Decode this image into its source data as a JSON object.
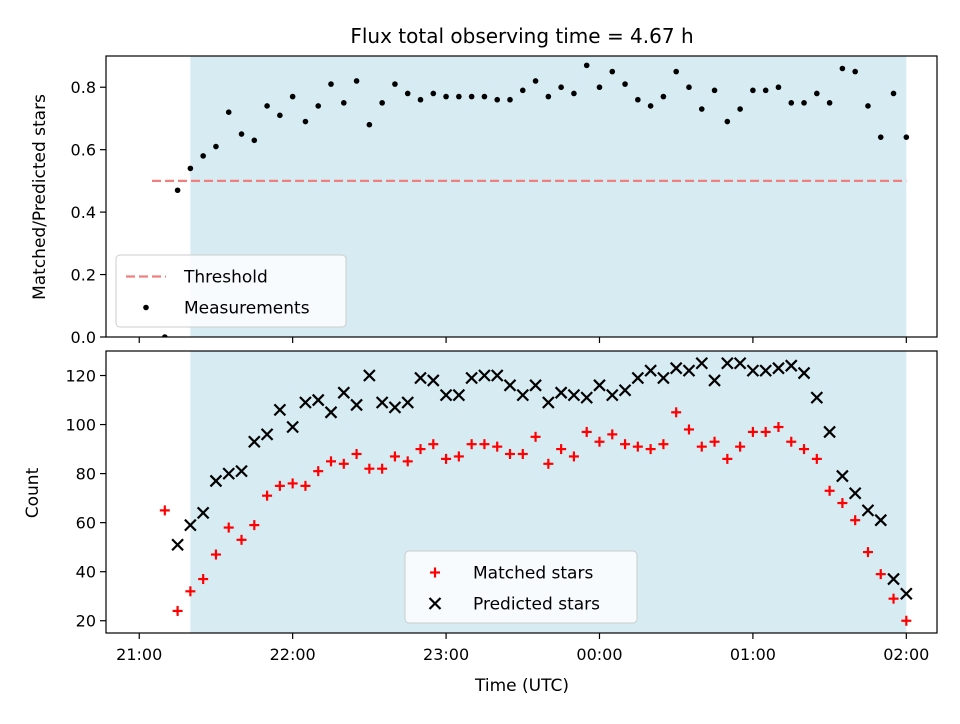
{
  "chart_data": [
    {
      "type": "scatter",
      "title": "Flux total observing time = 4.67 h",
      "xlabel": "",
      "ylabel": "Matched/Predicted stars",
      "xlim": [
        "21:00",
        "02:00"
      ],
      "xticks": [
        "21:00",
        "22:00",
        "23:00",
        "00:00",
        "01:00",
        "02:00"
      ],
      "show_xtick_labels": false,
      "ylim": [
        0,
        0.9
      ],
      "yticks": [
        0.0,
        0.2,
        0.4,
        0.6,
        0.8
      ],
      "ytick_labels": [
        "0.0",
        "0.2",
        "0.4",
        "0.6",
        "0.8"
      ],
      "shaded_span": [
        "21:20",
        "02:00"
      ],
      "shade_color": "#add8e6",
      "grid": false,
      "legend": "lower-left",
      "threshold": {
        "name": "Threshold",
        "y": 0.5,
        "x_range": [
          "21:05",
          "02:00"
        ],
        "color": "#f08080"
      },
      "series": [
        {
          "name": "Measurements",
          "marker": "dot",
          "color": "#000000",
          "x": [
            "21:10",
            "21:15",
            "21:20",
            "21:25",
            "21:30",
            "21:35",
            "21:40",
            "21:45",
            "21:50",
            "21:55",
            "22:00",
            "22:05",
            "22:10",
            "22:15",
            "22:20",
            "22:25",
            "22:30",
            "22:35",
            "22:40",
            "22:45",
            "22:50",
            "22:55",
            "23:00",
            "23:05",
            "23:10",
            "23:15",
            "23:20",
            "23:25",
            "23:30",
            "23:35",
            "23:40",
            "23:45",
            "23:50",
            "23:55",
            "00:00",
            "00:05",
            "00:10",
            "00:15",
            "00:20",
            "00:25",
            "00:30",
            "00:35",
            "00:40",
            "00:45",
            "00:50",
            "00:55",
            "01:00",
            "01:05",
            "01:10",
            "01:15",
            "01:20",
            "01:25",
            "01:30",
            "01:35",
            "01:40",
            "01:45",
            "01:50",
            "01:55",
            "02:00"
          ],
          "y": [
            0.0,
            0.47,
            0.54,
            0.58,
            0.61,
            0.72,
            0.65,
            0.63,
            0.74,
            0.71,
            0.77,
            0.69,
            0.74,
            0.81,
            0.75,
            0.82,
            0.68,
            0.75,
            0.81,
            0.78,
            0.76,
            0.78,
            0.77,
            0.77,
            0.77,
            0.77,
            0.76,
            0.76,
            0.79,
            0.82,
            0.77,
            0.8,
            0.78,
            0.87,
            0.8,
            0.85,
            0.81,
            0.76,
            0.74,
            0.77,
            0.85,
            0.8,
            0.73,
            0.79,
            0.69,
            0.73,
            0.79,
            0.79,
            0.8,
            0.75,
            0.75,
            0.78,
            0.75,
            0.86,
            0.85,
            0.74,
            0.64,
            0.78,
            0.64
          ]
        }
      ]
    },
    {
      "type": "scatter",
      "title": "",
      "xlabel": "Time (UTC)",
      "ylabel": "Count",
      "xlim": [
        "21:00",
        "02:00"
      ],
      "xticks": [
        "21:00",
        "22:00",
        "23:00",
        "00:00",
        "01:00",
        "02:00"
      ],
      "show_xtick_labels": true,
      "ylim": [
        15,
        130
      ],
      "yticks": [
        20,
        40,
        60,
        80,
        100,
        120
      ],
      "ytick_labels": [
        "20",
        "40",
        "60",
        "80",
        "100",
        "120"
      ],
      "shaded_span": [
        "21:20",
        "02:00"
      ],
      "shade_color": "#add8e6",
      "grid": false,
      "legend": "lower-center",
      "series": [
        {
          "name": "Matched stars",
          "marker": "plus",
          "color": "#ff0000",
          "x": [
            "21:10",
            "21:15",
            "21:20",
            "21:25",
            "21:30",
            "21:35",
            "21:40",
            "21:45",
            "21:50",
            "21:55",
            "22:00",
            "22:05",
            "22:10",
            "22:15",
            "22:20",
            "22:25",
            "22:30",
            "22:35",
            "22:40",
            "22:45",
            "22:50",
            "22:55",
            "23:00",
            "23:05",
            "23:10",
            "23:15",
            "23:20",
            "23:25",
            "23:30",
            "23:35",
            "23:40",
            "23:45",
            "23:50",
            "23:55",
            "00:00",
            "00:05",
            "00:10",
            "00:15",
            "00:20",
            "00:25",
            "00:30",
            "00:35",
            "00:40",
            "00:45",
            "00:50",
            "00:55",
            "01:00",
            "01:05",
            "01:10",
            "01:15",
            "01:20",
            "01:25",
            "01:30",
            "01:35",
            "01:40",
            "01:45",
            "01:50",
            "01:55",
            "02:00"
          ],
          "y": [
            65,
            24,
            32,
            37,
            47,
            58,
            53,
            59,
            71,
            75,
            76,
            75,
            81,
            85,
            84,
            88,
            82,
            82,
            87,
            85,
            90,
            92,
            86,
            87,
            92,
            92,
            91,
            88,
            88,
            95,
            84,
            90,
            87,
            97,
            93,
            96,
            92,
            91,
            90,
            92,
            105,
            98,
            91,
            93,
            86,
            91,
            97,
            97,
            99,
            93,
            90,
            86,
            73,
            68,
            61,
            48,
            39,
            29,
            20
          ]
        },
        {
          "name": "Predicted stars",
          "marker": "x",
          "color": "#000000",
          "x": [
            "21:15",
            "21:20",
            "21:25",
            "21:30",
            "21:35",
            "21:40",
            "21:45",
            "21:50",
            "21:55",
            "22:00",
            "22:05",
            "22:10",
            "22:15",
            "22:20",
            "22:25",
            "22:30",
            "22:35",
            "22:40",
            "22:45",
            "22:50",
            "22:55",
            "23:00",
            "23:05",
            "23:10",
            "23:15",
            "23:20",
            "23:25",
            "23:30",
            "23:35",
            "23:40",
            "23:45",
            "23:50",
            "23:55",
            "00:00",
            "00:05",
            "00:10",
            "00:15",
            "00:20",
            "00:25",
            "00:30",
            "00:35",
            "00:40",
            "00:45",
            "00:50",
            "00:55",
            "01:00",
            "01:05",
            "01:10",
            "01:15",
            "01:20",
            "01:25",
            "01:30",
            "01:35",
            "01:40",
            "01:45",
            "01:50",
            "01:55",
            "02:00"
          ],
          "y": [
            51,
            59,
            64,
            77,
            80,
            81,
            93,
            96,
            106,
            99,
            109,
            110,
            105,
            113,
            108,
            120,
            109,
            107,
            109,
            119,
            118,
            112,
            112,
            119,
            120,
            120,
            116,
            112,
            116,
            109,
            113,
            112,
            111,
            116,
            112,
            114,
            119,
            122,
            119,
            123,
            122,
            125,
            118,
            125,
            125,
            122,
            122,
            123,
            124,
            121,
            111,
            97,
            79,
            72,
            65,
            61,
            37,
            31
          ]
        }
      ]
    }
  ]
}
